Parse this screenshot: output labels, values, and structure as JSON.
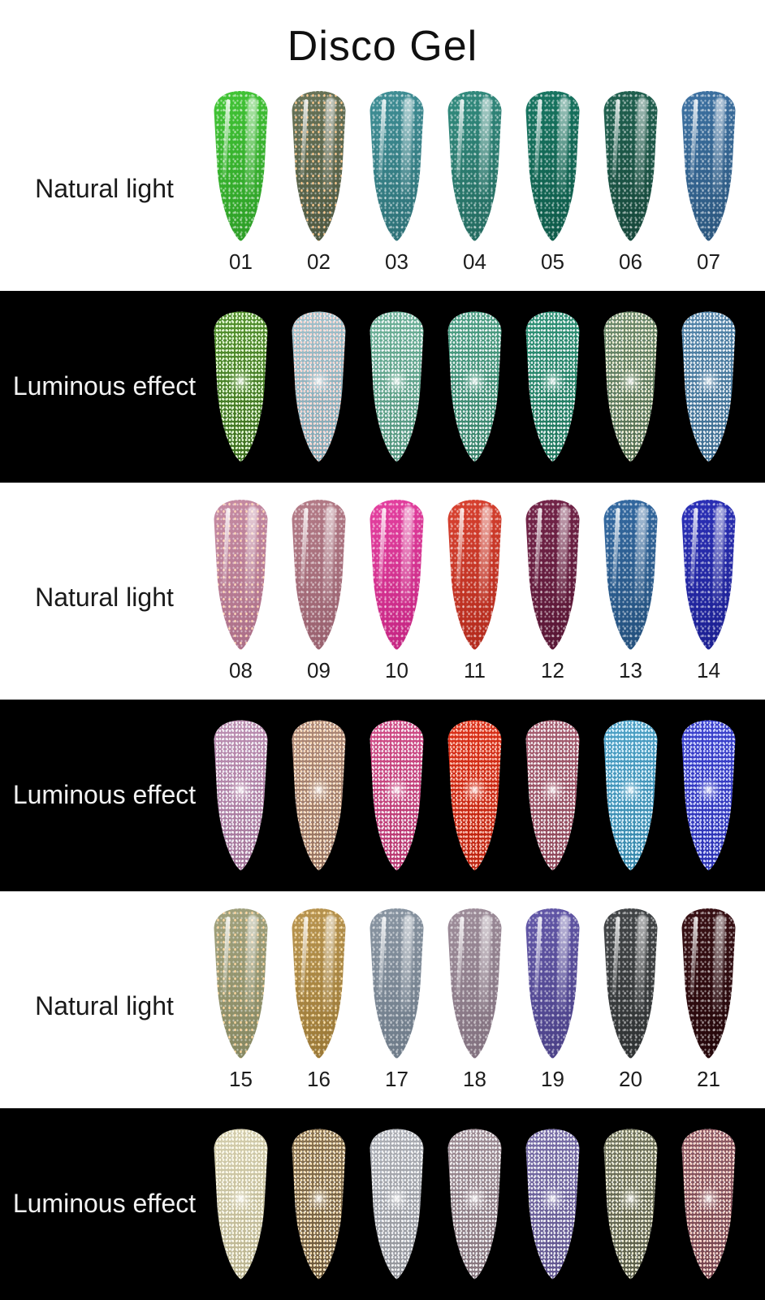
{
  "title": "Disco Gel",
  "colors": {
    "page_bg": "#ffffff",
    "dark_panel_bg": "#000000",
    "text_dark": "#1a1a1a",
    "text_light": "#f2f2f2"
  },
  "rows": [
    {
      "kind": "natural",
      "label": "Natural light",
      "items": [
        {
          "num": "01",
          "base": "#41c335",
          "deep": "#2ea027"
        },
        {
          "num": "02",
          "base": "#667257",
          "deep": "#4f5a43",
          "fleck": "#ffc98f"
        },
        {
          "num": "03",
          "base": "#3e8d94",
          "deep": "#2f7379"
        },
        {
          "num": "04",
          "base": "#31897c",
          "deep": "#256d62"
        },
        {
          "num": "05",
          "base": "#177460",
          "deep": "#0f5c4b"
        },
        {
          "num": "06",
          "base": "#20604f",
          "deep": "#17493c"
        },
        {
          "num": "07",
          "base": "#3c70a0",
          "deep": "#2c5880"
        }
      ]
    },
    {
      "kind": "luminous",
      "label": "Luminous effect",
      "items": [
        {
          "base": "#55932f",
          "deep": "#3a6b1e",
          "fleck": "#e9ffd2"
        },
        {
          "base": "#a3c2cb",
          "deep": "#7fa3b0",
          "fleck": "#ffd9d2"
        },
        {
          "base": "#6fb39a",
          "deep": "#4f917a"
        },
        {
          "base": "#4da085",
          "deep": "#357f67"
        },
        {
          "base": "#2f9377",
          "deep": "#1d7259"
        },
        {
          "base": "#6d8a6b",
          "deep": "#506b4f",
          "fleck": "#f5f3d8"
        },
        {
          "base": "#5586aa",
          "deep": "#3a6a8e"
        }
      ]
    },
    {
      "kind": "natural",
      "label": "Natural light",
      "items": [
        {
          "num": "08",
          "base": "#c48aa2",
          "deep": "#ad7089",
          "fleck": "#ffd7b8"
        },
        {
          "num": "09",
          "base": "#b27a86",
          "deep": "#9a6270"
        },
        {
          "num": "10",
          "base": "#e23f9e",
          "deep": "#c72784"
        },
        {
          "num": "11",
          "base": "#d6402f",
          "deep": "#b52c1e"
        },
        {
          "num": "12",
          "base": "#722448",
          "deep": "#5a1736"
        },
        {
          "num": "13",
          "base": "#33689f",
          "deep": "#25527f"
        },
        {
          "num": "14",
          "base": "#2a2fb5",
          "deep": "#1d2194"
        }
      ]
    },
    {
      "kind": "luminous",
      "label": "Luminous effect",
      "items": [
        {
          "base": "#bd90b3",
          "deep": "#a17398"
        },
        {
          "base": "#b08a78",
          "deep": "#93705e",
          "fleck": "#ffe2c2"
        },
        {
          "base": "#d14e88",
          "deep": "#b5356e"
        },
        {
          "base": "#dd3018",
          "deep": "#b82210",
          "fleck": "#ffb4a0"
        },
        {
          "base": "#a85f72",
          "deep": "#8c4557"
        },
        {
          "base": "#4fa3c8",
          "deep": "#3585a8",
          "fleck": "#dcf4ff"
        },
        {
          "base": "#3d43d0",
          "deep": "#2a30b0",
          "fleck": "#ccd2ff"
        }
      ]
    },
    {
      "kind": "natural",
      "label": "Natural light",
      "items": [
        {
          "num": "15",
          "base": "#9fa07c",
          "deep": "#878963",
          "fleck": "#ffd7a0"
        },
        {
          "num": "16",
          "base": "#b7934e",
          "deep": "#9c7a38",
          "fleck": "#ffe2a8"
        },
        {
          "num": "17",
          "base": "#8793a0",
          "deep": "#6f7c8a"
        },
        {
          "num": "18",
          "base": "#9c8b98",
          "deep": "#837280"
        },
        {
          "num": "19",
          "base": "#6156a6",
          "deep": "#4c4289"
        },
        {
          "num": "20",
          "base": "#424547",
          "deep": "#303334"
        },
        {
          "num": "21",
          "base": "#381014",
          "deep": "#26080b"
        }
      ]
    },
    {
      "kind": "luminous",
      "label": "Luminous effect",
      "items": [
        {
          "base": "#d5cfae",
          "deep": "#b8b18d",
          "fleck": "#fffbe8"
        },
        {
          "base": "#8a7351",
          "deep": "#6b5739",
          "fleck": "#ffe8bc"
        },
        {
          "base": "#aeb0b6",
          "deep": "#909298"
        },
        {
          "base": "#a08e96",
          "deep": "#83727a"
        },
        {
          "base": "#7a6fa8",
          "deep": "#5e538c"
        },
        {
          "base": "#74775f",
          "deep": "#585b46",
          "fleck": "#f3f1d6"
        },
        {
          "base": "#8f5a64",
          "deep": "#73424c",
          "fleck": "#ffd9cc"
        }
      ]
    }
  ]
}
